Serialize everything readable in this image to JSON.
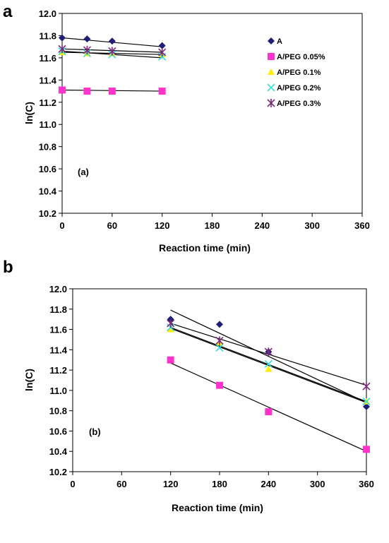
{
  "series_styles": [
    {
      "color": "#1f1f7a",
      "marker": "diamond"
    },
    {
      "color": "#ff33cc",
      "marker": "square"
    },
    {
      "color": "#ffee00",
      "marker": "triangle"
    },
    {
      "color": "#33dddd",
      "marker": "x"
    },
    {
      "color": "#7a2a7a",
      "marker": "asterisk"
    }
  ],
  "chart_data": [
    {
      "type": "scatter",
      "panel_letter": "a",
      "panel_tag": "(a)",
      "xlabel": "Reaction time (min)",
      "ylabel": "ln(C)",
      "xlim": [
        0,
        360
      ],
      "ylim": [
        10.2,
        12.0
      ],
      "xticks": [
        "0",
        "60",
        "120",
        "180",
        "240",
        "300",
        "360"
      ],
      "yticks": [
        "10.2",
        "10.4",
        "10.6",
        "10.8",
        "11.0",
        "11.2",
        "11.4",
        "11.6",
        "11.8",
        "12.0"
      ],
      "legend": "top-right",
      "grid": false,
      "series": [
        {
          "name": "A",
          "x": [
            0,
            30,
            60,
            120
          ],
          "y": [
            11.78,
            11.77,
            11.75,
            11.71
          ],
          "fit": [
            [
              0,
              11.78
            ],
            [
              120,
              11.7
            ]
          ]
        },
        {
          "name": "A/PEG 0.05%",
          "x": [
            0,
            30,
            60,
            120
          ],
          "y": [
            11.31,
            11.3,
            11.3,
            11.3
          ],
          "fit": [
            [
              0,
              11.31
            ],
            [
              120,
              11.3
            ]
          ]
        },
        {
          "name": "A/PEG 0.1%",
          "x": [
            0,
            30,
            60,
            120
          ],
          "y": [
            11.65,
            11.64,
            11.64,
            11.63
          ],
          "fit": [
            [
              0,
              11.65
            ],
            [
              120,
              11.63
            ]
          ]
        },
        {
          "name": "A/PEG 0.2%",
          "x": [
            0,
            30,
            60,
            120
          ],
          "y": [
            11.66,
            11.64,
            11.63,
            11.61
          ],
          "fit": [
            [
              0,
              11.66
            ],
            [
              120,
              11.6
            ]
          ]
        },
        {
          "name": "A/PEG 0.3%",
          "x": [
            0,
            30,
            60,
            120
          ],
          "y": [
            11.68,
            11.67,
            11.66,
            11.65
          ],
          "fit": [
            [
              0,
              11.68
            ],
            [
              120,
              11.65
            ]
          ]
        }
      ]
    },
    {
      "type": "scatter",
      "panel_letter": "b",
      "panel_tag": "(b)",
      "xlabel": "Reaction time (min)",
      "ylabel": "ln(C)",
      "xlim": [
        0,
        360
      ],
      "ylim": [
        10.2,
        12.0
      ],
      "xticks": [
        "0",
        "60",
        "120",
        "180",
        "240",
        "300",
        "360"
      ],
      "yticks": [
        "10.2",
        "10.4",
        "10.6",
        "10.8",
        "11.0",
        "11.2",
        "11.4",
        "11.6",
        "11.8",
        "12.0"
      ],
      "legend": "none",
      "grid": false,
      "series": [
        {
          "x": [
            120,
            180,
            240,
            360
          ],
          "y": [
            11.7,
            11.65,
            11.38,
            10.84
          ],
          "fit": [
            [
              120,
              11.79
            ],
            [
              360,
              10.88
            ]
          ]
        },
        {
          "x": [
            120,
            180,
            240,
            360
          ],
          "y": [
            11.3,
            11.05,
            10.79,
            10.42
          ],
          "fit": [
            [
              120,
              11.27
            ],
            [
              360,
              10.4
            ]
          ]
        },
        {
          "x": [
            120,
            180,
            240,
            360
          ],
          "y": [
            11.6,
            11.47,
            11.21,
            10.89
          ],
          "fit": [
            [
              120,
              11.61
            ],
            [
              360,
              10.88
            ]
          ]
        },
        {
          "x": [
            120,
            180,
            240,
            360
          ],
          "y": [
            11.62,
            11.42,
            11.26,
            10.89
          ],
          "fit": [
            [
              120,
              11.62
            ],
            [
              360,
              10.89
            ]
          ]
        },
        {
          "x": [
            120,
            180,
            240,
            360
          ],
          "y": [
            11.66,
            11.49,
            11.38,
            11.04
          ],
          "fit": [
            [
              120,
              11.66
            ],
            [
              360,
              11.05
            ]
          ]
        }
      ]
    }
  ]
}
